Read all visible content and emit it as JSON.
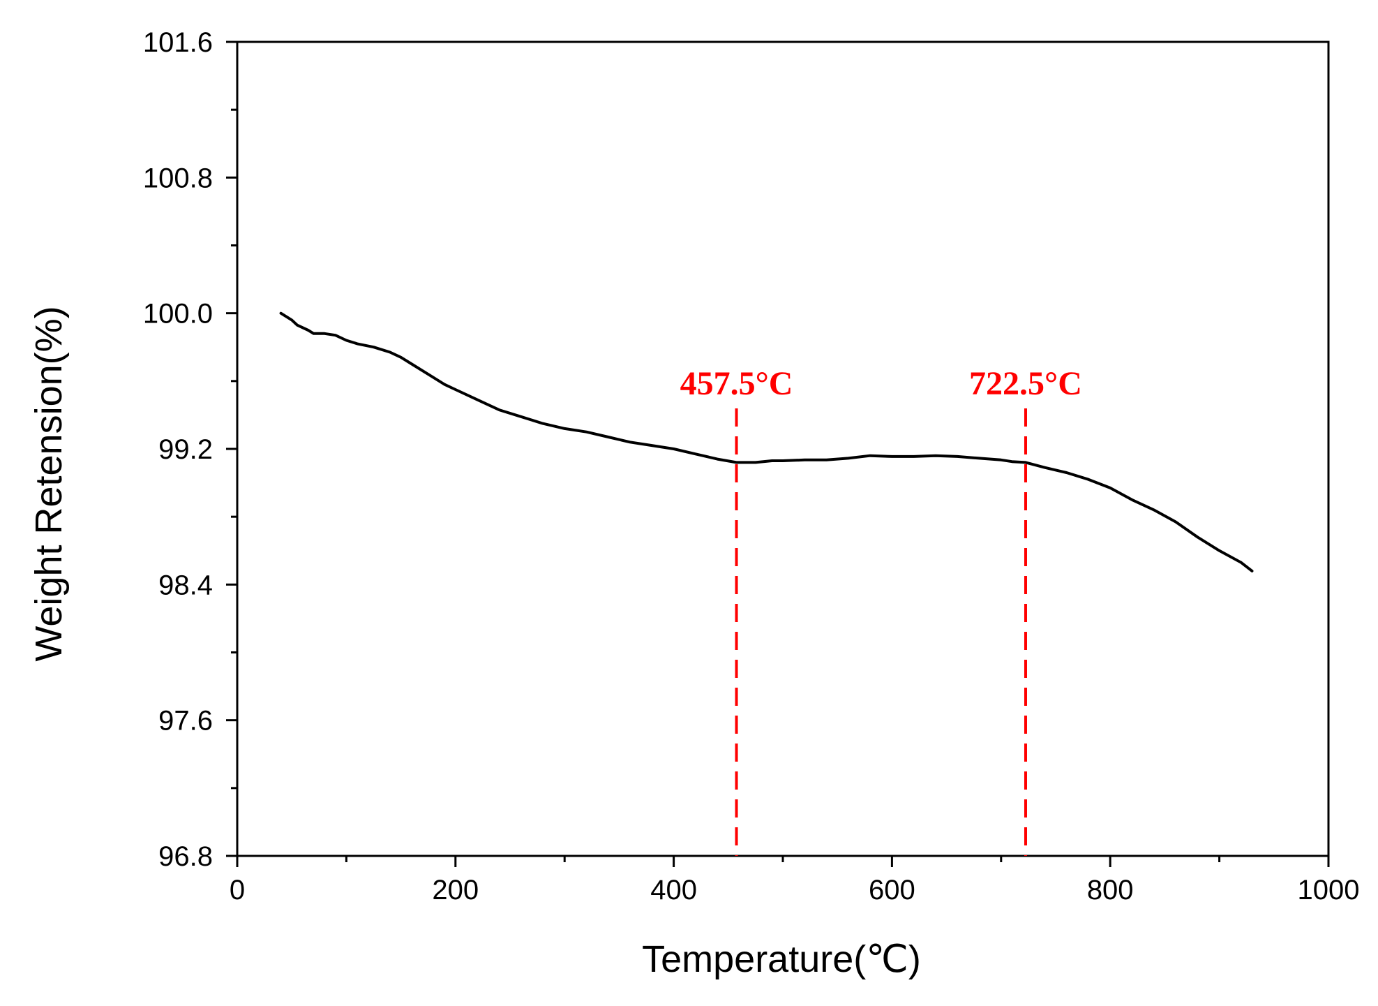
{
  "chart_data": {
    "type": "line",
    "title": "",
    "xlabel": "Temperature(℃)",
    "ylabel": "Weight Retension(%)",
    "xlim": [
      0,
      1000
    ],
    "ylim": [
      96.8,
      101.6
    ],
    "x_ticks": [
      0,
      200,
      400,
      600,
      800,
      1000
    ],
    "x_tick_labels": [
      "0",
      "200",
      "400",
      "600",
      "800",
      "1000"
    ],
    "x_minor_ticks": [
      100,
      300,
      500,
      700,
      900
    ],
    "y_ticks": [
      96.8,
      97.6,
      98.4,
      99.2,
      100.0,
      100.8,
      101.6
    ],
    "y_tick_labels": [
      "96.8",
      "97.6",
      "98.4",
      "99.2",
      "100.0",
      "100.8",
      "101.6"
    ],
    "y_minor_ticks": [
      97.2,
      98.0,
      98.8,
      99.6,
      100.4,
      101.2
    ],
    "grid": false,
    "series": [
      {
        "color": "#000000",
        "x": [
          40,
          50,
          55,
          65,
          70,
          80,
          90,
          100,
          110,
          125,
          140,
          150,
          160,
          175,
          190,
          200,
          220,
          240,
          260,
          280,
          300,
          320,
          340,
          360,
          380,
          400,
          420,
          440,
          457.5,
          475,
          490,
          500,
          520,
          540,
          560,
          580,
          600,
          620,
          640,
          660,
          680,
          700,
          710,
          722.5,
          740,
          760,
          780,
          800,
          820,
          840,
          860,
          880,
          900,
          920,
          930
        ],
        "y": [
          100.0,
          99.96,
          99.93,
          99.9,
          99.88,
          99.88,
          99.87,
          99.84,
          99.82,
          99.8,
          99.77,
          99.74,
          99.7,
          99.64,
          99.58,
          99.55,
          99.49,
          99.43,
          99.39,
          99.35,
          99.32,
          99.3,
          99.27,
          99.24,
          99.22,
          99.2,
          99.17,
          99.14,
          99.12,
          99.12,
          99.13,
          99.13,
          99.135,
          99.135,
          99.145,
          99.16,
          99.155,
          99.155,
          99.16,
          99.155,
          99.145,
          99.135,
          99.125,
          99.12,
          99.09,
          99.06,
          99.02,
          98.97,
          98.9,
          98.84,
          98.77,
          98.68,
          98.6,
          98.53,
          98.48
        ]
      }
    ],
    "annotations": [
      {
        "x": 457.5,
        "label": "457.5°C",
        "color": "#ff0000",
        "style": "dashed"
      },
      {
        "x": 722.5,
        "label": "722.5°C",
        "color": "#ff0000",
        "style": "dashed"
      }
    ]
  }
}
